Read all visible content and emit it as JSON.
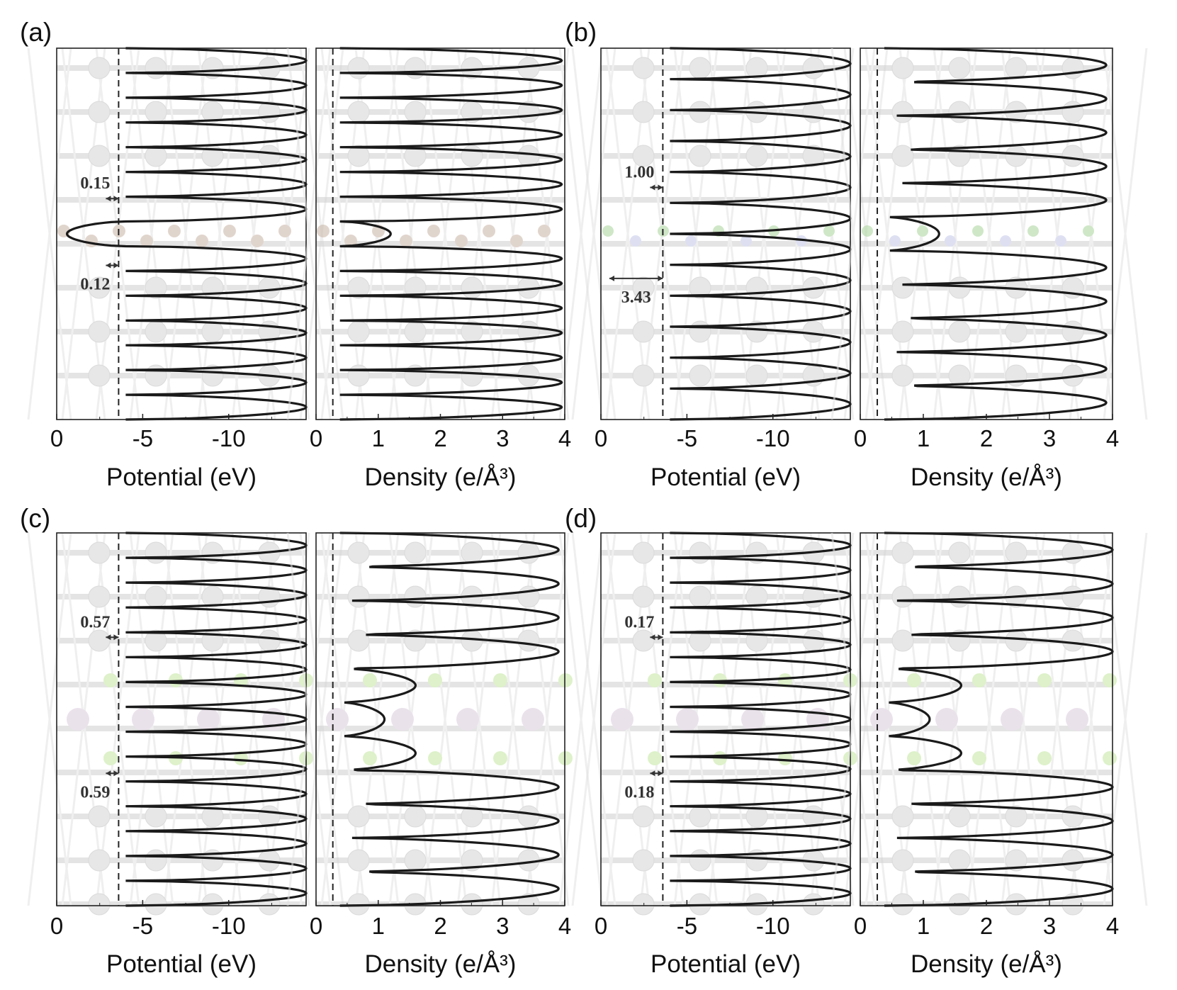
{
  "chart_data": [
    {
      "panel": "(a)",
      "type": "line",
      "subplots": [
        {
          "xlabel": "Potential  (eV)",
          "x_ticks": [
            "0",
            "-5",
            "-10"
          ],
          "x_tick_values": [
            0,
            -5,
            -10
          ],
          "xlim": [
            0,
            -14.5
          ],
          "reference_line_x": -3.6,
          "series": [
            {
              "values": [
                -14.5,
                -14.5,
                -14.5,
                -14.5,
                -14.5,
                -14.5,
                -14.5,
                -0.6,
                -14.5,
                -14.5,
                -14.5,
                -14.5,
                -14.5,
                -14.5,
                -14.5
              ]
            }
          ],
          "barrier_annotations": [
            {
              "label": "0.15",
              "value": 0.15
            },
            {
              "label": "0.12",
              "value": 0.12
            }
          ]
        },
        {
          "xlabel": "Density (e/Å³)",
          "x_ticks": [
            "0",
            "1",
            "2",
            "3",
            "4"
          ],
          "x_tick_values": [
            0,
            1,
            2,
            3,
            4
          ],
          "xlim": [
            0,
            4
          ],
          "reference_line_x": 0.27,
          "series": [
            {
              "values": [
                3.95,
                3.95,
                3.95,
                3.95,
                3.95,
                3.95,
                3.95,
                1.2,
                3.95,
                3.95,
                3.95,
                3.95,
                3.95,
                3.95,
                3.95
              ]
            }
          ]
        }
      ]
    },
    {
      "panel": "(b)",
      "type": "line",
      "subplots": [
        {
          "xlabel": "Potential  (eV)",
          "x_ticks": [
            "0",
            "-5",
            "-10"
          ],
          "x_tick_values": [
            0,
            -5,
            -10
          ],
          "xlim": [
            0,
            -14.5
          ],
          "reference_line_x": -3.6,
          "series": [
            {
              "values": [
                -14.5,
                -14.5,
                -14.5,
                -14.5,
                -14.5,
                -14.5,
                -14.5,
                -14.5,
                -14.5,
                -14.5,
                -14.5,
                -14.5
              ]
            }
          ],
          "barrier_annotations": [
            {
              "label": "1.00",
              "value": 1.0
            },
            {
              "label": "3.43",
              "value": 3.43
            }
          ]
        },
        {
          "xlabel": "Density (e/Å³)",
          "x_ticks": [
            "0",
            "1",
            "2",
            "3",
            "4"
          ],
          "x_tick_values": [
            0,
            1,
            2,
            3,
            4
          ],
          "xlim": [
            0,
            4
          ],
          "reference_line_x": 0.27,
          "series": [
            {
              "values": [
                3.9,
                3.9,
                3.9,
                3.9,
                3.9,
                1.25,
                3.9,
                3.9,
                3.9,
                3.9,
                3.9
              ]
            }
          ]
        }
      ]
    },
    {
      "panel": "(c)",
      "type": "line",
      "subplots": [
        {
          "xlabel": "Potential  (eV)",
          "x_ticks": [
            "0",
            "-5",
            "-10"
          ],
          "x_tick_values": [
            0,
            -5,
            -10
          ],
          "xlim": [
            0,
            -14.5
          ],
          "reference_line_x": -3.6,
          "series": [
            {
              "values": [
                -14.5,
                -14.5,
                -14.5,
                -14.5,
                -14.5,
                -14.5,
                -14.5,
                -14.5,
                -14.5,
                -14.5,
                -14.5,
                -14.5,
                -14.5,
                -14.5,
                -14.5
              ]
            }
          ],
          "barrier_annotations": [
            {
              "label": "0.57",
              "value": 0.57
            },
            {
              "label": "0.59",
              "value": 0.59
            }
          ]
        },
        {
          "xlabel": "Density (e/Å³)",
          "x_ticks": [
            "0",
            "1",
            "2",
            "3",
            "4"
          ],
          "x_tick_values": [
            0,
            1,
            2,
            3,
            4
          ],
          "xlim": [
            0,
            4
          ],
          "reference_line_x": 0.27,
          "series": [
            {
              "values": [
                3.9,
                3.9,
                3.9,
                3.9,
                1.6,
                1.1,
                1.6,
                3.9,
                3.9,
                3.9,
                3.9
              ]
            }
          ]
        }
      ]
    },
    {
      "panel": "(d)",
      "type": "line",
      "subplots": [
        {
          "xlabel": "Potential  (eV)",
          "x_ticks": [
            "0",
            "-5",
            "-10"
          ],
          "x_tick_values": [
            0,
            -5,
            -10
          ],
          "xlim": [
            0,
            -14.5
          ],
          "reference_line_x": -3.6,
          "series": [
            {
              "values": [
                -14.5,
                -14.5,
                -14.5,
                -14.5,
                -14.5,
                -14.5,
                -14.5,
                -14.5,
                -14.5,
                -14.5,
                -14.5,
                -14.5,
                -14.5,
                -14.5,
                -14.5
              ]
            }
          ],
          "barrier_annotations": [
            {
              "label": "0.17",
              "value": 0.17
            },
            {
              "label": "0.18",
              "value": 0.18
            }
          ]
        },
        {
          "xlabel": "Density (e/Å³)",
          "x_ticks": [
            "0",
            "1",
            "2",
            "3",
            "4"
          ],
          "x_tick_values": [
            0,
            1,
            2,
            3,
            4
          ],
          "xlim": [
            0,
            4
          ],
          "reference_line_x": 0.27,
          "series": [
            {
              "values": [
                4.0,
                4.0,
                4.0,
                4.0,
                1.6,
                1.1,
                1.6,
                4.0,
                4.0,
                4.0,
                4.0
              ]
            }
          ]
        }
      ]
    }
  ]
}
